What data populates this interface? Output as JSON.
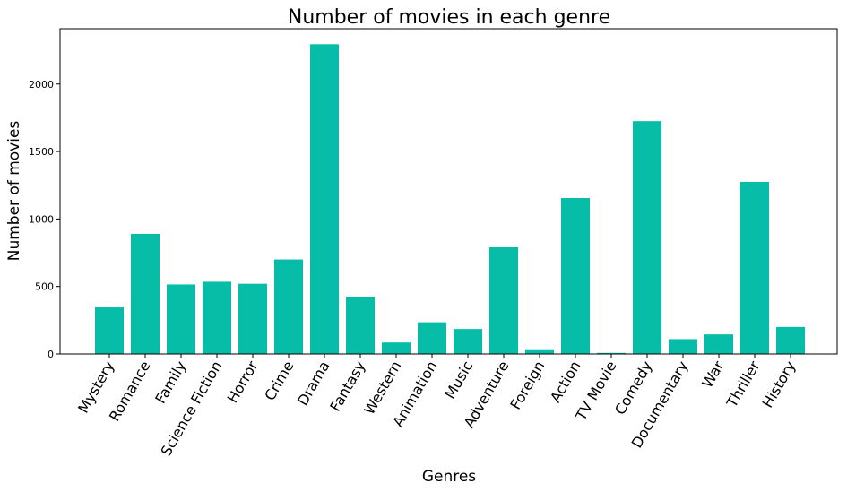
{
  "chart_data": {
    "type": "bar",
    "title": "Number of movies in each genre",
    "xlabel": "Genres",
    "ylabel": "Number of movies",
    "categories": [
      "Mystery",
      "Romance",
      "Family",
      "Science Fiction",
      "Horror",
      "Crime",
      "Drama",
      "Fantasy",
      "Western",
      "Animation",
      "Music",
      "Adventure",
      "Foreign",
      "Action",
      "TV Movie",
      "Comedy",
      "Documentary",
      "War",
      "Thriller",
      "History"
    ],
    "values": [
      345,
      890,
      515,
      535,
      520,
      700,
      2295,
      425,
      85,
      235,
      185,
      790,
      35,
      1155,
      8,
      1725,
      110,
      145,
      1275,
      200
    ],
    "yticks": [
      0,
      500,
      1000,
      1500,
      2000
    ],
    "ylim": [
      0,
      2410
    ],
    "bar_color": "#07bda8",
    "grid": false,
    "xtick_rotation": 60
  }
}
